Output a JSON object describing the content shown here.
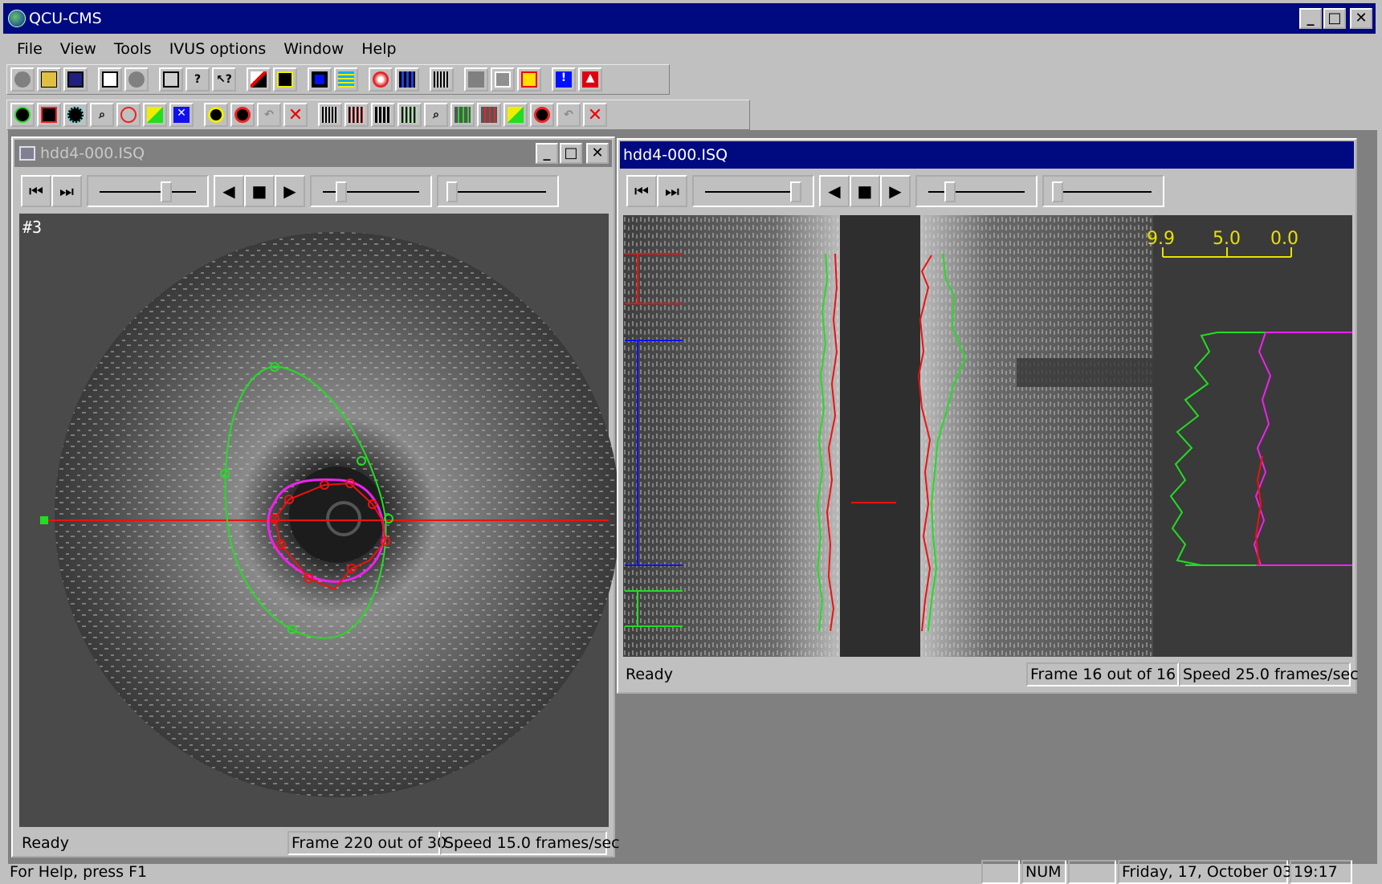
{
  "app": {
    "title": "QCU-CMS"
  },
  "menu": [
    "File",
    "View",
    "Tools",
    "IVUS options",
    "Window",
    "Help"
  ],
  "left_window": {
    "title": "hdd4-000.ISQ",
    "frame_label": "#3",
    "status_ready": "Ready",
    "status_frame": "Frame 220 out of 30",
    "status_speed": "Speed 15.0 frames/sec"
  },
  "right_window": {
    "title": "hdd4-000.ISQ",
    "scale_labels": [
      "9.9",
      "5.0",
      "0.0"
    ],
    "status_ready": "Ready",
    "status_frame": "Frame 16 out of 16",
    "status_speed": "Speed 25.0 frames/sec"
  },
  "main_status": {
    "help": "For Help, press F1",
    "num": "NUM",
    "date": "Friday, 17, October 03",
    "time": "19:17"
  },
  "colors": {
    "title_active": "#000a80",
    "title_inactive": "#808080",
    "contour_green": "#22dd22",
    "contour_red": "#ee1111",
    "contour_magenta": "#ee22ee",
    "scale_yellow": "#e8e000",
    "segment_blue": "#1010ee"
  }
}
